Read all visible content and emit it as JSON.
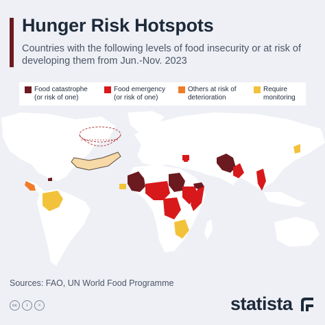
{
  "header": {
    "title": "Hunger Risk Hotspots",
    "subtitle": "Countries with the following levels of food insecurity or at risk of developing them from Jun.-Nov. 2023"
  },
  "legend": {
    "items": [
      {
        "line1": "Food catastrophe",
        "line2": "(or risk of one)",
        "color": "#6b1a1f"
      },
      {
        "line1": "Food emergency",
        "line2": "(or risk of one)",
        "color": "#d7191c"
      },
      {
        "line1": "Others at risk of",
        "line2": "deterioration",
        "color": "#f07c2a"
      },
      {
        "line1": "Require",
        "line2": "monitoring",
        "color": "#f2c23a"
      }
    ]
  },
  "colors": {
    "land": "#ffffff",
    "background": "#eef0f5",
    "accent": "#6b1a1f"
  },
  "icons": [
    "hand-holding-bowl-icon",
    "creative-commons-icon",
    "attribution-icon",
    "no-derivatives-icon"
  ],
  "footer": {
    "sources": "Sources: FAO, UN World Food Programme",
    "brand": "statista",
    "cc_labels": [
      "cc",
      "i",
      "="
    ]
  }
}
